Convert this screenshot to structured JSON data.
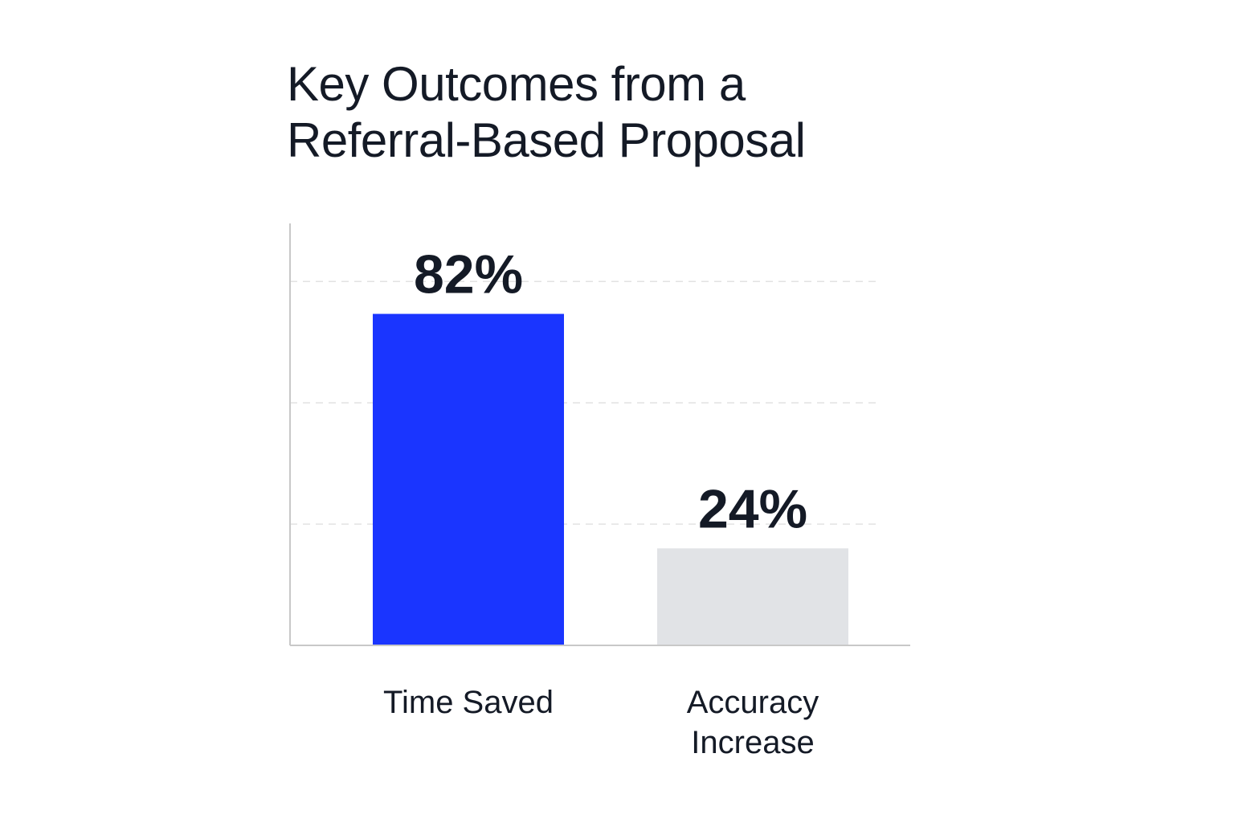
{
  "chart_data": {
    "type": "bar",
    "title_lines": [
      "Key Outcomes from a",
      "Referral-Based Proposal"
    ],
    "categories": [
      [
        "Time Saved"
      ],
      [
        "Accuracy",
        "Increase"
      ]
    ],
    "values": [
      82,
      24
    ],
    "value_labels": [
      "82%",
      "24%"
    ],
    "ylim": [
      0,
      100
    ],
    "grid": true,
    "colors": [
      "#1a35ff",
      "#e1e3e6"
    ],
    "axis_color": "#c8c8c8",
    "grid_color": "#e2e2e2"
  }
}
